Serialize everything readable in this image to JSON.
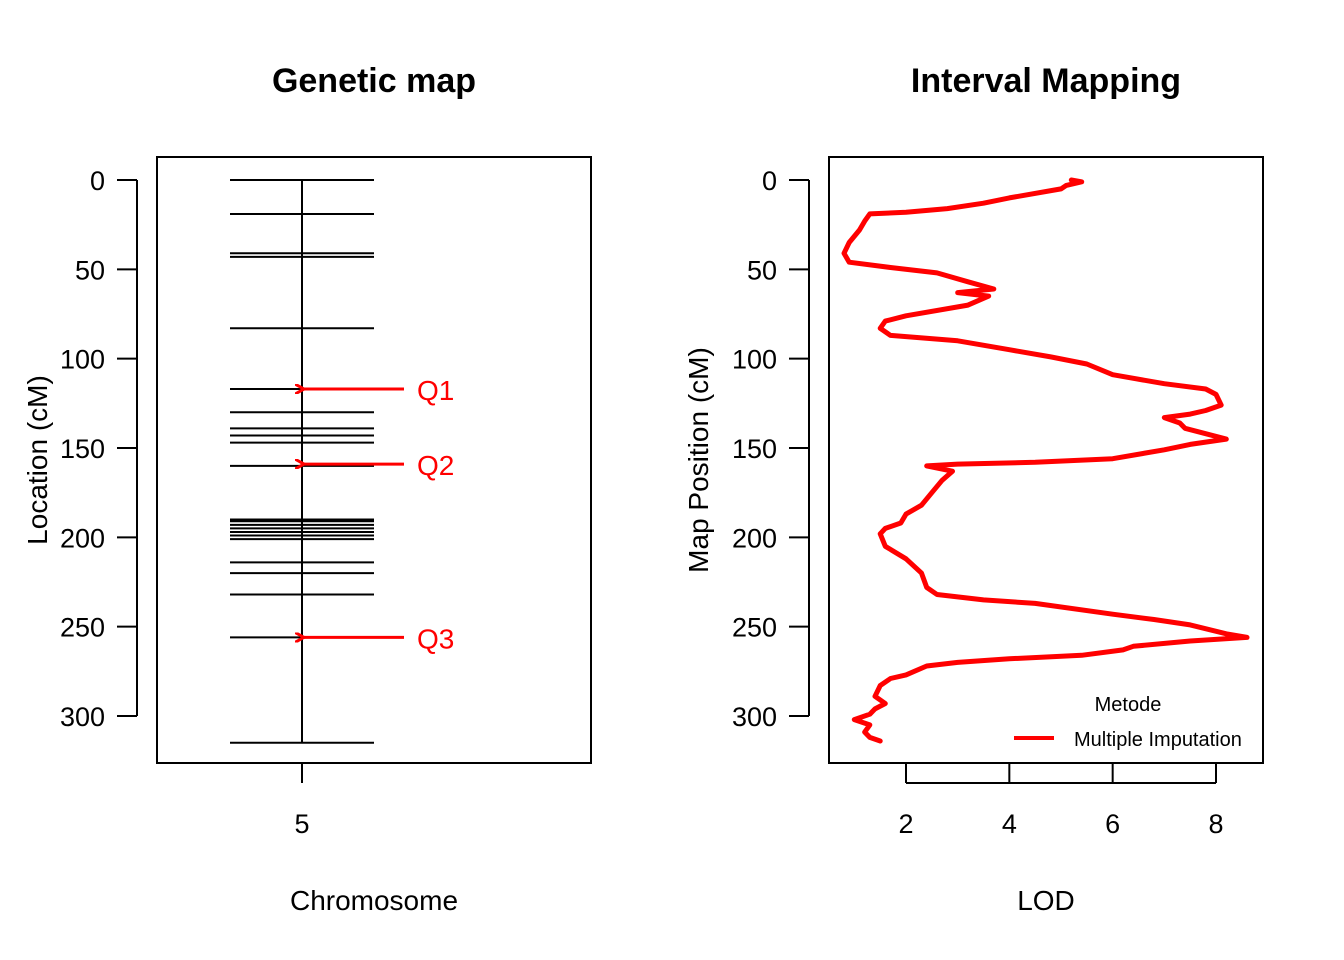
{
  "chart_data": [
    {
      "type": "genetic_map",
      "title": "Genetic map",
      "xlabel": "Chromosome",
      "ylabel": "Location (cM)",
      "chromosome": "5",
      "ylim": [
        315,
        0
      ],
      "yticks": [
        0,
        50,
        100,
        150,
        200,
        250,
        300
      ],
      "chrom_length": 315,
      "markers": [
        0,
        19,
        41,
        43,
        83,
        117,
        130,
        139,
        143,
        147,
        160,
        190,
        191,
        193,
        195,
        197,
        199,
        201,
        214,
        220,
        232,
        256,
        315
      ],
      "qtl": [
        {
          "label": "Q1",
          "position": 117
        },
        {
          "label": "Q2",
          "position": 159
        },
        {
          "label": "Q3",
          "position": 256
        }
      ],
      "qtl_color": "#ff0000"
    },
    {
      "type": "line",
      "title": "Interval Mapping",
      "xlabel": "LOD",
      "ylabel": "Map Position (cM)",
      "xlim": [
        0.6,
        9.0
      ],
      "ylim": [
        315,
        0
      ],
      "xticks": [
        2,
        4,
        6,
        8
      ],
      "yticks": [
        0,
        50,
        100,
        150,
        200,
        250,
        300
      ],
      "legend": {
        "title": "Metode",
        "position": "bottom-right"
      },
      "series": [
        {
          "name": "Multiple Imputation",
          "color": "#ff0000",
          "points": [
            [
              5.2,
              0
            ],
            [
              5.4,
              1
            ],
            [
              5.1,
              3
            ],
            [
              5.0,
              5
            ],
            [
              4.0,
              10
            ],
            [
              3.5,
              13
            ],
            [
              2.8,
              16
            ],
            [
              2.0,
              18
            ],
            [
              1.3,
              19
            ],
            [
              1.2,
              23
            ],
            [
              1.1,
              28
            ],
            [
              0.9,
              35
            ],
            [
              0.8,
              41
            ],
            [
              0.9,
              46
            ],
            [
              1.7,
              49
            ],
            [
              2.6,
              52
            ],
            [
              3.2,
              57
            ],
            [
              3.7,
              61
            ],
            [
              3.0,
              63
            ],
            [
              3.6,
              65
            ],
            [
              3.2,
              70
            ],
            [
              2.0,
              76
            ],
            [
              1.6,
              79
            ],
            [
              1.5,
              83
            ],
            [
              1.7,
              87
            ],
            [
              3.0,
              90
            ],
            [
              4.0,
              95
            ],
            [
              4.8,
              99
            ],
            [
              5.5,
              103
            ],
            [
              6.0,
              109
            ],
            [
              7.0,
              114
            ],
            [
              7.8,
              117
            ],
            [
              8.0,
              120
            ],
            [
              8.1,
              126
            ],
            [
              7.8,
              129
            ],
            [
              7.5,
              131
            ],
            [
              7.0,
              133
            ],
            [
              7.3,
              136
            ],
            [
              7.4,
              139
            ],
            [
              8.2,
              145
            ],
            [
              7.5,
              148
            ],
            [
              7.0,
              151
            ],
            [
              6.0,
              156
            ],
            [
              4.5,
              158
            ],
            [
              3.0,
              159
            ],
            [
              2.4,
              160
            ],
            [
              2.9,
              163
            ],
            [
              2.7,
              168
            ],
            [
              2.5,
              175
            ],
            [
              2.3,
              182
            ],
            [
              2.0,
              187
            ],
            [
              1.9,
              192
            ],
            [
              1.6,
              195
            ],
            [
              1.5,
              198
            ],
            [
              1.6,
              205
            ],
            [
              2.0,
              212
            ],
            [
              2.3,
              220
            ],
            [
              2.4,
              228
            ],
            [
              2.6,
              232
            ],
            [
              3.5,
              235
            ],
            [
              4.5,
              237
            ],
            [
              6.0,
              243
            ],
            [
              6.8,
              246
            ],
            [
              7.5,
              249
            ],
            [
              8.2,
              254
            ],
            [
              8.6,
              256
            ],
            [
              7.5,
              258
            ],
            [
              6.4,
              261
            ],
            [
              6.2,
              263
            ],
            [
              5.4,
              266
            ],
            [
              4.0,
              268
            ],
            [
              3.0,
              270
            ],
            [
              2.4,
              272
            ],
            [
              2.0,
              277
            ],
            [
              1.7,
              279
            ],
            [
              1.5,
              283
            ],
            [
              1.4,
              289
            ],
            [
              1.6,
              293
            ],
            [
              1.4,
              296
            ],
            [
              1.3,
              299
            ],
            [
              1.0,
              302
            ],
            [
              1.3,
              305
            ],
            [
              1.2,
              309
            ],
            [
              1.3,
              312
            ],
            [
              1.5,
              314
            ]
          ]
        }
      ]
    }
  ]
}
